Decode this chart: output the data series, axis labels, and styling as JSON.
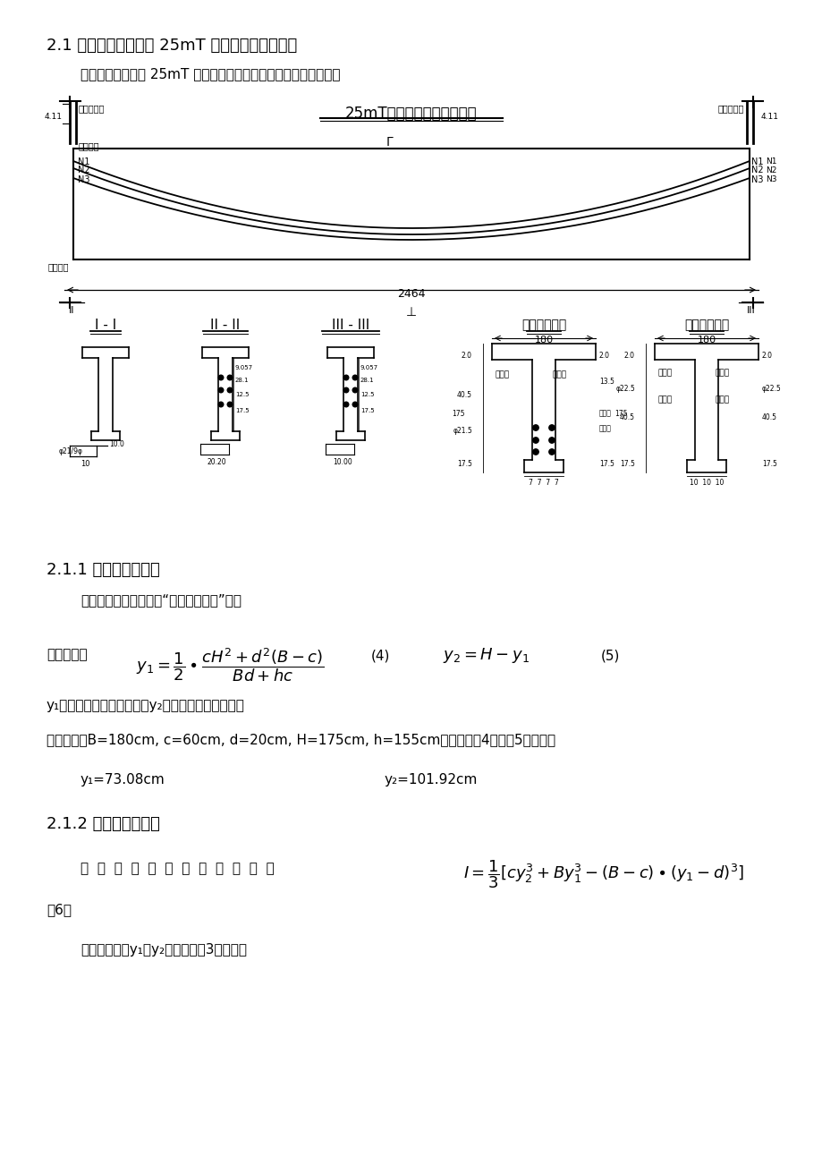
{
  "page_bg": "#ffffff",
  "title_section": "2.1 十里排枢纽主线桥 25mT 梁相关参数（计算）",
  "subtitle": "十里排枢纽主线桥 25mT 梁钉束布置图及相应的断面图如下所示：",
  "beam_title": "25mT梁钉束立面布置示意图",
  "left_label": "支座中心线",
  "right_label": "支座中心线",
  "left_sub": "锁锁端墙",
  "bottom_dim": "2464",
  "bottom_left": "坐标原点",
  "section_labels": [
    "I - I",
    "II - II",
    "III - III",
    "中梁跨中断面",
    "中梁支点断面"
  ],
  "section211_title": "2.1.1 中性轴位置计算",
  "section211_text1": "中性轴的位置计算依据“中梁支点断面”图。",
  "formula_prefix": "计算公式：",
  "formula_num4": "(4)",
  "formula_num5": "(5)",
  "text_y1_meaning": "y₁为梁顶至中性轴的距离，y₂为梁底至中性轴的距离",
  "text_params": "将梁体参数B=180cm, c=60cm, d=20cm, H=175cm, h=155cm代入公式（4）、（5）可得：",
  "result_y1": "y₁=73.08cm",
  "result_y2": "y₂=101.92cm",
  "section212_title": "2.1.2 截面惯性矩计算",
  "formula212_prefix": "截  面  惯  性  矩  计  算  采  用  公  式  ：",
  "label6": "（6）",
  "text_params2": "将梁体参数及y₁、y₂代入公式（3）可得："
}
